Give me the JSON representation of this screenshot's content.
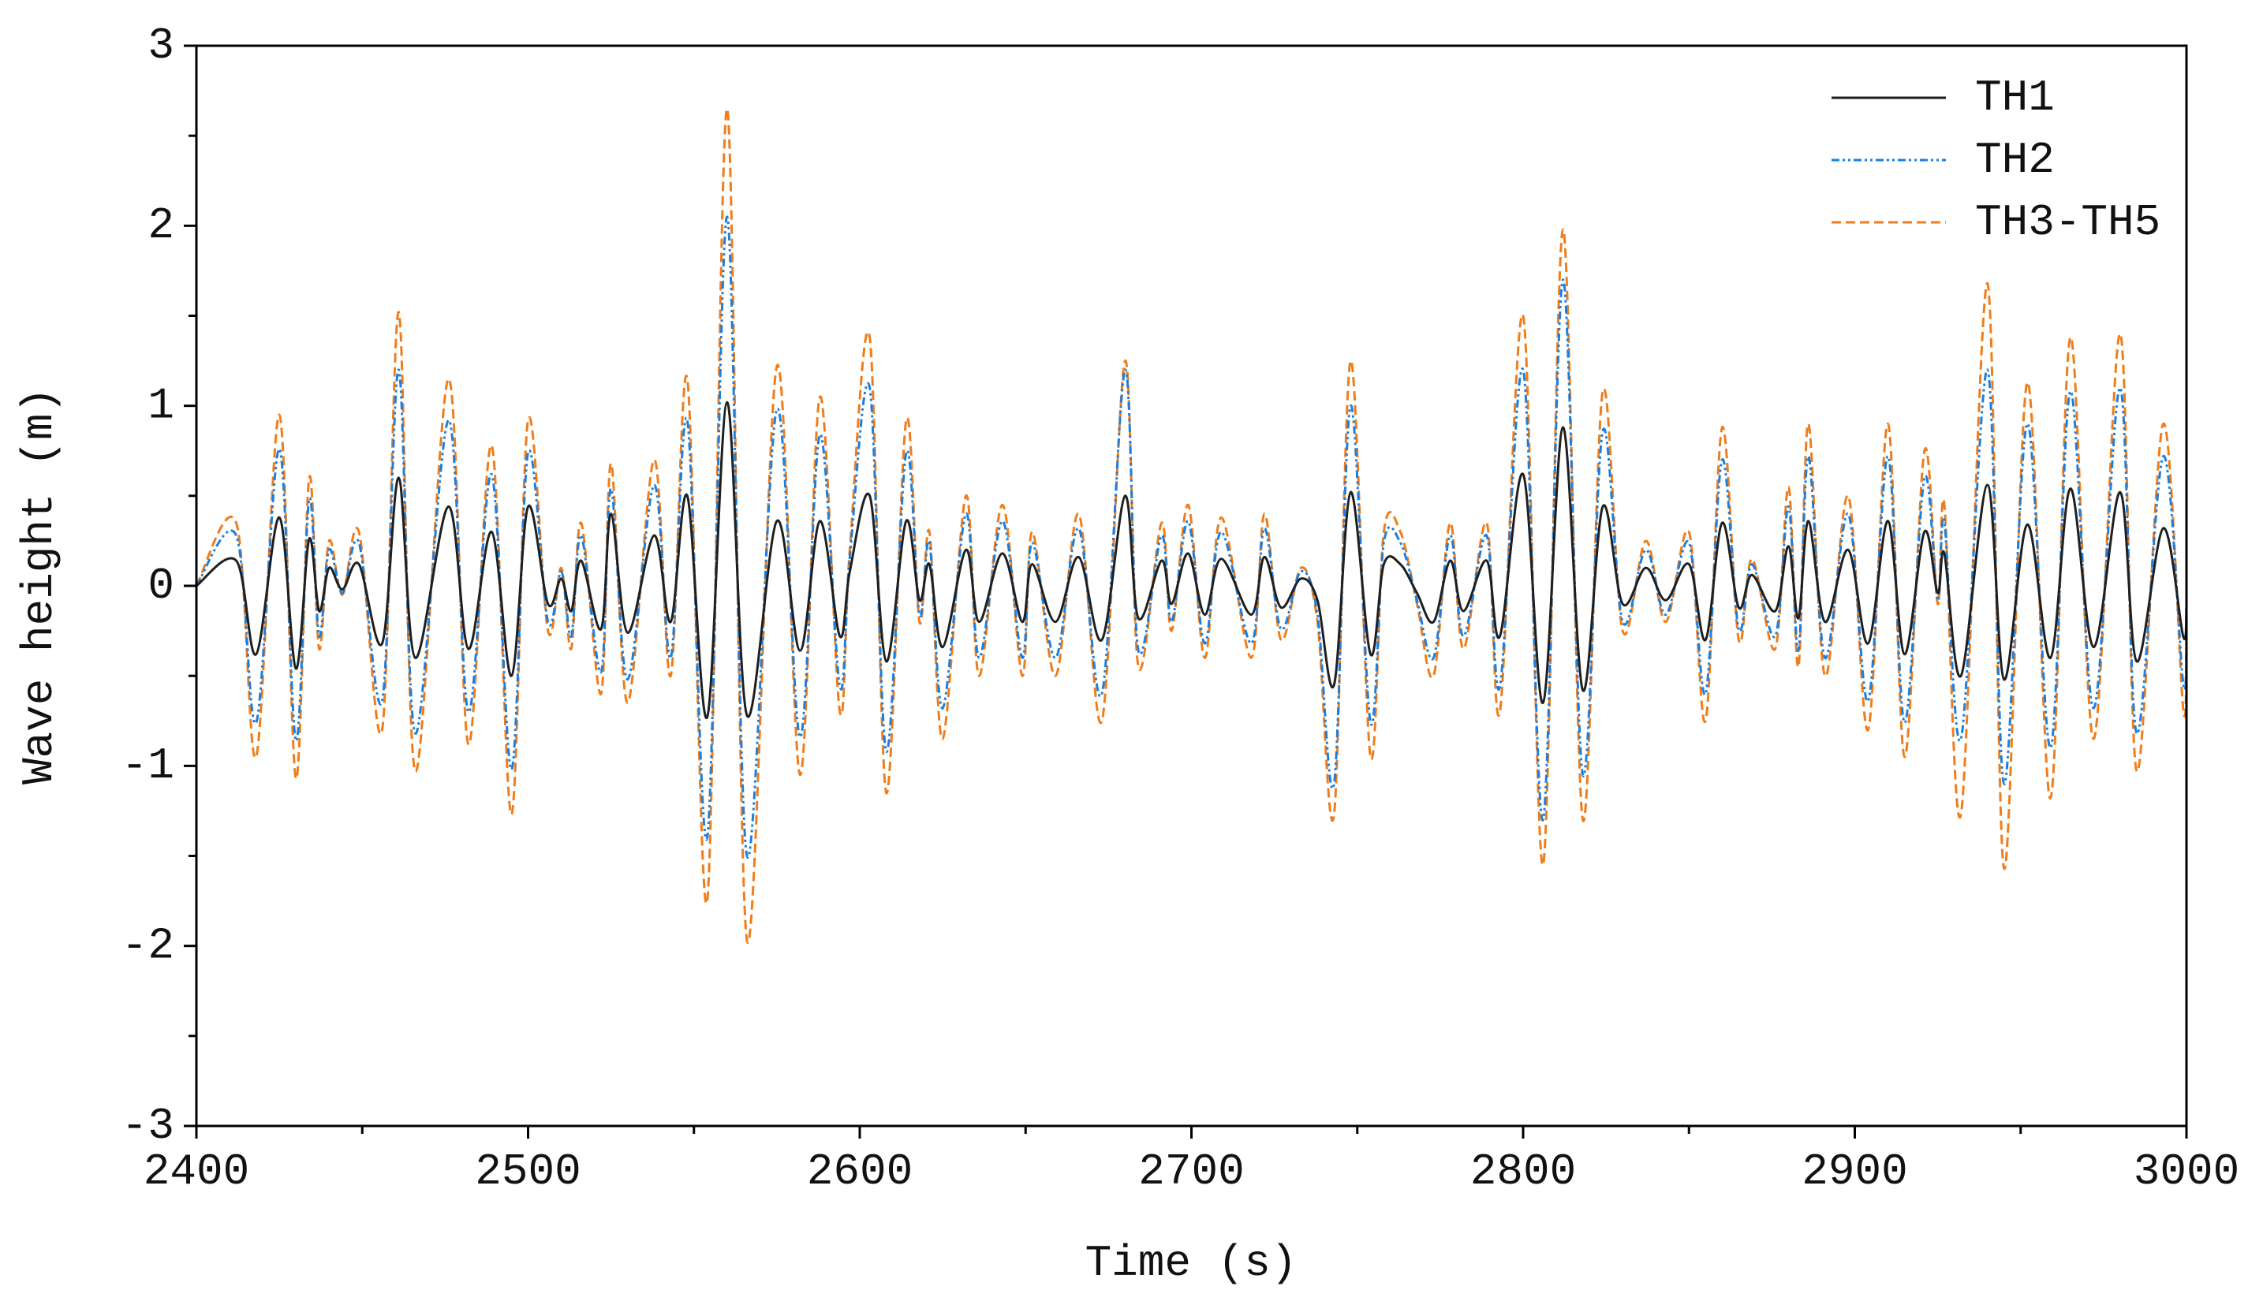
{
  "chart_data": {
    "type": "line",
    "xlabel": "Time (s)",
    "ylabel": "Wave height (m)",
    "x": [
      2400,
      2412,
      2418,
      2425,
      2430,
      2434,
      2437,
      2440,
      2444,
      2449,
      2456,
      2461,
      2466,
      2476,
      2482,
      2489,
      2495,
      2500,
      2506,
      2510,
      2513,
      2516,
      2522,
      2525,
      2530,
      2538,
      2543,
      2548,
      2554,
      2560,
      2566,
      2575,
      2582,
      2588,
      2594,
      2597,
      2603,
      2608,
      2614,
      2618,
      2621,
      2625,
      2632,
      2636,
      2643,
      2649,
      2652,
      2659,
      2666,
      2673,
      2680,
      2684,
      2691,
      2694,
      2699,
      2704,
      2709,
      2718,
      2722,
      2727,
      2733,
      2738,
      2743,
      2748,
      2754,
      2758,
      2763,
      2768,
      2773,
      2778,
      2782,
      2789,
      2793,
      2800,
      2806,
      2812,
      2818,
      2824,
      2830,
      2837,
      2843,
      2850,
      2855,
      2860,
      2865,
      2869,
      2876,
      2880,
      2883,
      2886,
      2891,
      2898,
      2904,
      2910,
      2915,
      2921,
      2925,
      2927,
      2932,
      2940,
      2945,
      2952,
      2959,
      2965,
      2972,
      2980,
      2985,
      2993,
      2999,
      3000
    ],
    "series": [
      {
        "name": "TH1",
        "color": "#1f1f1f",
        "dash": "none",
        "values": [
          0,
          0.14,
          -0.38,
          0.38,
          -0.46,
          0.26,
          -0.14,
          0.1,
          -0.02,
          0.12,
          -0.32,
          0.6,
          -0.4,
          0.44,
          -0.35,
          0.3,
          -0.5,
          0.44,
          -0.1,
          0.04,
          -0.14,
          0.14,
          -0.24,
          0.4,
          -0.26,
          0.28,
          -0.2,
          0.5,
          -0.73,
          1.02,
          -0.72,
          0.36,
          -0.36,
          0.36,
          -0.28,
          0.08,
          0.5,
          -0.42,
          0.36,
          -0.08,
          0.12,
          -0.34,
          0.2,
          -0.2,
          0.18,
          -0.2,
          0.12,
          -0.2,
          0.16,
          -0.3,
          0.5,
          -0.18,
          0.14,
          -0.1,
          0.18,
          -0.16,
          0.15,
          -0.16,
          0.16,
          -0.12,
          0.04,
          -0.08,
          -0.55,
          0.52,
          -0.38,
          0.12,
          0.12,
          -0.04,
          -0.2,
          0.14,
          -0.14,
          0.14,
          -0.28,
          0.62,
          -0.65,
          0.88,
          -0.58,
          0.44,
          -0.1,
          0.1,
          -0.08,
          0.12,
          -0.3,
          0.35,
          -0.12,
          0.06,
          -0.14,
          0.22,
          -0.18,
          0.36,
          -0.2,
          0.2,
          -0.32,
          0.36,
          -0.38,
          0.3,
          -0.04,
          0.18,
          -0.5,
          0.56,
          -0.52,
          0.34,
          -0.4,
          0.54,
          -0.34,
          0.52,
          -0.42,
          0.32,
          -0.28,
          -0.12
        ]
      },
      {
        "name": "TH2",
        "color": "#1a7fe0",
        "dash": "10 4 3 4 3 4",
        "values": [
          0,
          0.28,
          -0.76,
          0.76,
          -0.86,
          0.48,
          -0.28,
          0.2,
          -0.04,
          0.24,
          -0.64,
          1.2,
          -0.82,
          0.92,
          -0.7,
          0.62,
          -1.02,
          0.74,
          -0.2,
          0.08,
          -0.28,
          0.28,
          -0.48,
          0.54,
          -0.52,
          0.56,
          -0.4,
          0.92,
          -1.4,
          2.05,
          -1.5,
          0.98,
          -0.84,
          0.84,
          -0.56,
          0.16,
          1.1,
          -0.92,
          0.74,
          -0.16,
          0.24,
          -0.68,
          0.4,
          -0.4,
          0.36,
          -0.4,
          0.24,
          -0.4,
          0.32,
          -0.6,
          1.2,
          -0.36,
          0.28,
          -0.2,
          0.36,
          -0.32,
          0.3,
          -0.32,
          0.32,
          -0.24,
          0.08,
          -0.16,
          -1.1,
          1.0,
          -0.76,
          0.24,
          0.24,
          -0.08,
          -0.4,
          0.28,
          -0.28,
          0.28,
          -0.56,
          1.2,
          -1.3,
          1.7,
          -1.05,
          0.86,
          -0.2,
          0.2,
          -0.16,
          0.24,
          -0.6,
          0.7,
          -0.24,
          0.12,
          -0.28,
          0.44,
          -0.36,
          0.72,
          -0.4,
          0.4,
          -0.64,
          0.72,
          -0.76,
          0.6,
          -0.08,
          0.36,
          -0.85,
          1.2,
          -1.1,
          0.9,
          -0.9,
          1.08,
          -0.68,
          1.1,
          -0.82,
          0.72,
          -0.54,
          -0.24
        ]
      },
      {
        "name": "TH3-TH5",
        "color": "#f07d1a",
        "dash": "12 6",
        "values": [
          0,
          0.35,
          -0.95,
          0.95,
          -1.07,
          0.6,
          -0.35,
          0.25,
          -0.05,
          0.3,
          -0.8,
          1.52,
          -1.03,
          1.15,
          -0.88,
          0.78,
          -1.27,
          0.92,
          -0.25,
          0.1,
          -0.35,
          0.35,
          -0.6,
          0.68,
          -0.65,
          0.7,
          -0.5,
          1.15,
          -1.75,
          2.65,
          -1.97,
          1.22,
          -1.05,
          1.05,
          -0.7,
          0.2,
          1.38,
          -1.15,
          0.92,
          -0.2,
          0.3,
          -0.85,
          0.5,
          -0.5,
          0.45,
          -0.5,
          0.3,
          -0.5,
          0.4,
          -0.75,
          1.25,
          -0.45,
          0.35,
          -0.25,
          0.45,
          -0.4,
          0.38,
          -0.4,
          0.4,
          -0.3,
          0.1,
          -0.2,
          -1.27,
          1.25,
          -0.95,
          0.3,
          0.3,
          -0.1,
          -0.5,
          0.35,
          -0.35,
          0.35,
          -0.7,
          1.5,
          -1.55,
          1.98,
          -1.3,
          1.08,
          -0.25,
          0.25,
          -0.2,
          0.3,
          -0.75,
          0.88,
          -0.3,
          0.15,
          -0.35,
          0.55,
          -0.45,
          0.9,
          -0.5,
          0.5,
          -0.8,
          0.9,
          -0.95,
          0.75,
          -0.1,
          0.45,
          -1.27,
          1.68,
          -1.57,
          1.13,
          -1.18,
          1.38,
          -0.85,
          1.4,
          -1.03,
          0.9,
          -0.68,
          -0.3
        ]
      }
    ],
    "xlim": [
      2400,
      3000
    ],
    "xticks": [
      2400,
      2500,
      2600,
      2700,
      2800,
      2900,
      3000
    ],
    "xminorticks": [
      2450,
      2550,
      2650,
      2750,
      2850,
      2950
    ],
    "ylim": [
      -3,
      3
    ],
    "yticks": [
      -3,
      -2,
      -1,
      0,
      1,
      2,
      3
    ],
    "yminorticks": [
      -2.5,
      -1.5,
      -0.5,
      0.5,
      1.5,
      2.5
    ],
    "grid": false,
    "legend": "upper right"
  }
}
